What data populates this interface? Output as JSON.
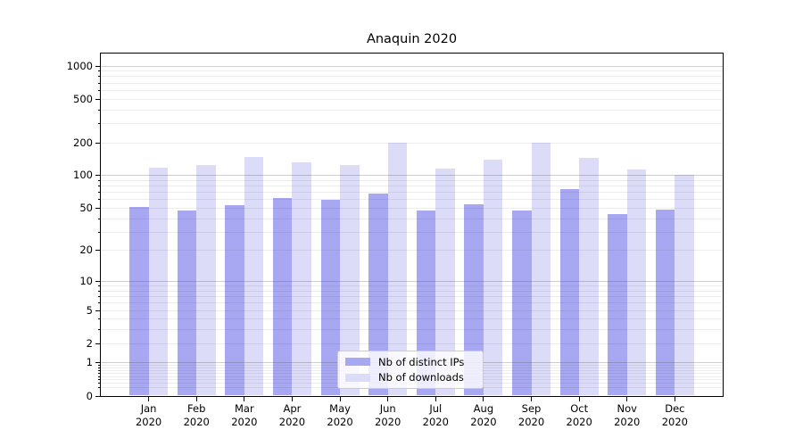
{
  "title": "Anaquin 2020",
  "chart_data": {
    "type": "bar",
    "title": "Anaquin 2020",
    "categories": [
      "Jan",
      "Feb",
      "Mar",
      "Apr",
      "May",
      "Jun",
      "Jul",
      "Aug",
      "Sep",
      "Oct",
      "Nov",
      "Dec"
    ],
    "x_year_label": "2020",
    "series": [
      {
        "name": "Nb of distinct IPs",
        "color": "#a8a8f2",
        "values": [
          51,
          47,
          53,
          61,
          59,
          68,
          47,
          54,
          47,
          74,
          44,
          48
        ]
      },
      {
        "name": "Nb of downloads",
        "color": "#dcdcf9",
        "values": [
          116,
          125,
          148,
          132,
          125,
          200,
          114,
          140,
          200,
          145,
          112,
          100
        ]
      }
    ],
    "y_ticks": [
      0,
      1,
      2,
      5,
      10,
      20,
      50,
      100,
      200,
      500,
      1000
    ],
    "y_scale": "log1p",
    "ylim": [
      0,
      1300
    ],
    "xlabel": "",
    "ylabel": "",
    "grid": true,
    "legend_position": "lower center"
  },
  "colors": {
    "bar_distinct_ips": "#a8a8f2",
    "bar_downloads": "#dcdcf9",
    "grid_major": "rgba(80,80,80,0.28)",
    "grid_minor": "rgba(0,0,0,0.07)",
    "axis": "#000000",
    "legend_border": "#cccccc"
  }
}
